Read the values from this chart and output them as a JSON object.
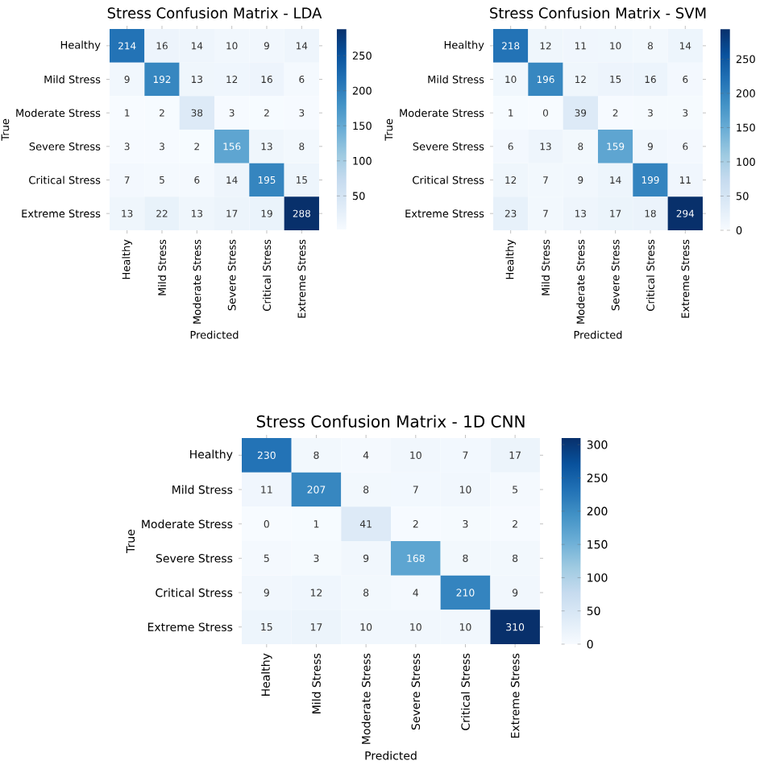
{
  "chart_data": [
    {
      "type": "heatmap",
      "title": "Stress Confusion Matrix - LDA",
      "xlabel": "Predicted",
      "ylabel": "True",
      "categories": [
        "Healthy",
        "Mild Stress",
        "Moderate Stress",
        "Severe Stress",
        "Critical Stress",
        "Extreme Stress"
      ],
      "y_categories": [
        "Healthy",
        "Mild Stress",
        "Moderate Stress",
        "Severe Stress",
        "Critical Stress",
        "Extreme Stress"
      ],
      "cells": [
        [
          214,
          16,
          14,
          10,
          9,
          14
        ],
        [
          9,
          192,
          13,
          12,
          16,
          6
        ],
        [
          1,
          2,
          38,
          3,
          2,
          3
        ],
        [
          3,
          3,
          2,
          156,
          13,
          8
        ],
        [
          7,
          5,
          6,
          14,
          195,
          15
        ],
        [
          13,
          22,
          13,
          17,
          19,
          288
        ]
      ],
      "clim": [
        1,
        288
      ],
      "cticks": [
        50,
        100,
        150,
        200,
        250
      ],
      "data_labels": true
    },
    {
      "type": "heatmap",
      "title": "Stress Confusion Matrix - SVM",
      "xlabel": "Predicted",
      "ylabel": "True",
      "categories": [
        "Healthy",
        "Mild Stress",
        "Moderate Stress",
        "Severe Stress",
        "Critical Stress",
        "Extreme Stress"
      ],
      "y_categories": [
        "Healthy",
        "Mild Stress",
        "Moderate Stress",
        "Severe Stress",
        "Critical Stress",
        "Extreme Stress"
      ],
      "cells": [
        [
          218,
          12,
          11,
          10,
          8,
          14
        ],
        [
          10,
          196,
          12,
          15,
          16,
          6
        ],
        [
          1,
          0,
          39,
          2,
          3,
          3
        ],
        [
          6,
          13,
          8,
          159,
          9,
          6
        ],
        [
          12,
          7,
          9,
          14,
          199,
          11
        ],
        [
          23,
          7,
          13,
          17,
          18,
          294
        ]
      ],
      "clim": [
        0,
        294
      ],
      "cticks": [
        0,
        50,
        100,
        150,
        200,
        250
      ],
      "data_labels": true
    },
    {
      "type": "heatmap",
      "title": "Stress Confusion Matrix - 1D CNN",
      "xlabel": "Predicted",
      "ylabel": "True",
      "categories": [
        "Healthy",
        "Mild Stress",
        "Moderate Stress",
        "Severe Stress",
        "Critical Stress",
        "Extreme Stress"
      ],
      "y_categories": [
        "Healthy",
        "Mild Stress",
        "Moderate Stress",
        "Severe Stress",
        "Critical Stress",
        "Extreme Stress"
      ],
      "cells": [
        [
          230,
          8,
          4,
          10,
          7,
          17
        ],
        [
          11,
          207,
          8,
          7,
          10,
          5
        ],
        [
          0,
          1,
          41,
          2,
          3,
          2
        ],
        [
          5,
          3,
          9,
          168,
          8,
          8
        ],
        [
          9,
          12,
          8,
          4,
          210,
          9
        ],
        [
          15,
          17,
          10,
          10,
          10,
          310
        ]
      ],
      "clim": [
        0,
        310
      ],
      "cticks": [
        0,
        50,
        100,
        150,
        200,
        250,
        300
      ],
      "data_labels": true
    }
  ]
}
